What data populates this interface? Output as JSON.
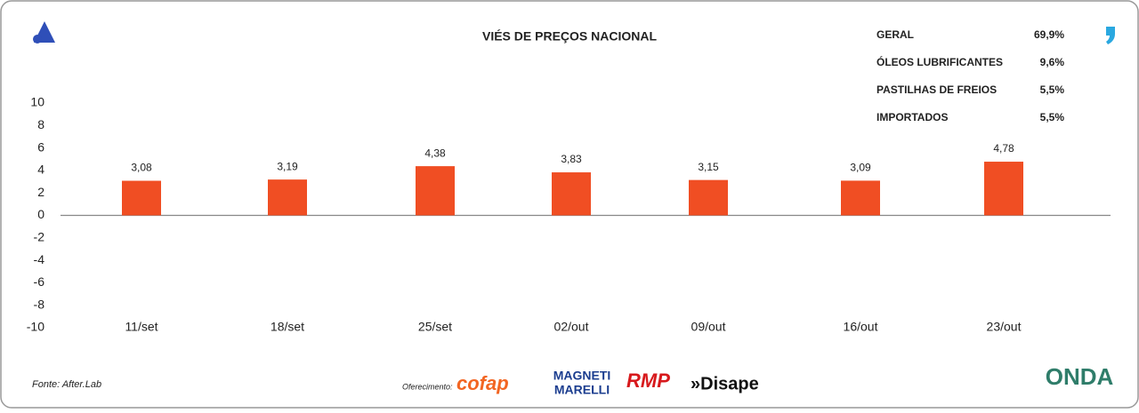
{
  "chart_data": {
    "type": "bar",
    "title": "VIÉS DE PREÇOS NACIONAL",
    "categories": [
      "11/set",
      "18/set",
      "25/set",
      "02/out",
      "09/out",
      "16/out",
      "23/out"
    ],
    "values": [
      3.08,
      3.19,
      4.38,
      3.83,
      3.15,
      3.09,
      4.78
    ],
    "value_labels": [
      "3,08",
      "3,19",
      "4,38",
      "3,83",
      "3,15",
      "3,09",
      "4,78"
    ],
    "color": "#f04e23",
    "ylim": [
      -10,
      10
    ],
    "yticks": [
      10,
      8,
      6,
      4,
      2,
      0,
      -2,
      -4,
      -6,
      -8,
      -10
    ]
  },
  "summary": [
    {
      "label": "GERAL",
      "value": "69,9%"
    },
    {
      "label": "ÓLEOS LUBRIFICANTES",
      "value": "9,6%"
    },
    {
      "label": "PASTILHAS DE FREIOS",
      "value": "5,5%"
    },
    {
      "label": "IMPORTADOS",
      "value": "5,5%"
    }
  ],
  "footer": {
    "source": "Fonte: After.Lab",
    "sponsor_label": "Oferecimento:",
    "sponsors": [
      "cofap",
      "MAGNETI",
      "MARELLI",
      "RMP",
      "»Disape"
    ],
    "brand": "ONDA"
  }
}
